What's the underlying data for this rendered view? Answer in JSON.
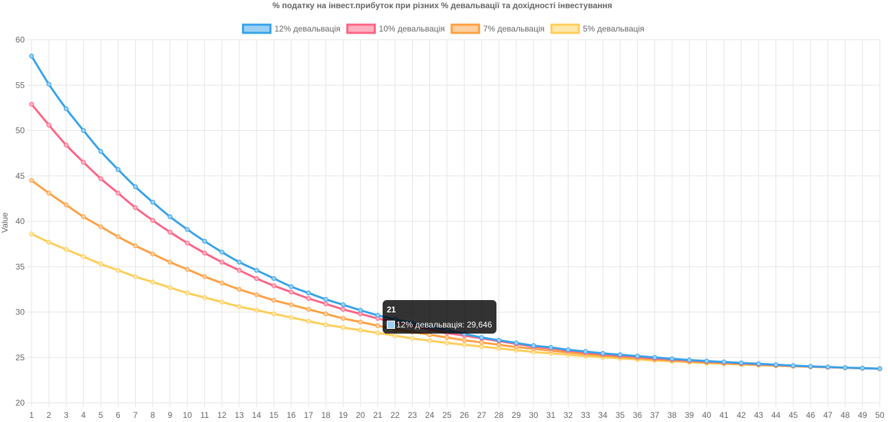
{
  "chart_data": {
    "type": "line",
    "title": "% податку на інвест.прибуток при різних % девальвації та дохідності інвестування",
    "xlabel": "",
    "ylabel": "Value",
    "ylim": [
      20,
      60
    ],
    "y_ticks": [
      "20",
      "25",
      "30",
      "35",
      "40",
      "45",
      "50",
      "55",
      "60"
    ],
    "x": [
      "1",
      "2",
      "3",
      "4",
      "5",
      "6",
      "7",
      "8",
      "9",
      "10",
      "11",
      "12",
      "13",
      "14",
      "15",
      "16",
      "17",
      "18",
      "19",
      "20",
      "21",
      "22",
      "23",
      "24",
      "25",
      "26",
      "27",
      "28",
      "29",
      "30",
      "31",
      "32",
      "33",
      "34",
      "35",
      "36",
      "37",
      "38",
      "39",
      "40",
      "41",
      "42",
      "43",
      "44",
      "45",
      "46",
      "47",
      "48",
      "49",
      "50"
    ],
    "grid": true,
    "legend": "top",
    "series": [
      {
        "name": "12% девальвація",
        "color": "#36a2eb",
        "fill": "#9ad0f5",
        "values": [
          58.2,
          55.1,
          52.4,
          50.0,
          47.7,
          45.7,
          43.8,
          42.1,
          40.5,
          39.1,
          37.8,
          36.6,
          35.5,
          34.6,
          33.7,
          32.8,
          32.1,
          31.4,
          30.8,
          30.2,
          29.646,
          29.2,
          28.8,
          28.4,
          28.0,
          27.6,
          27.2,
          26.9,
          26.6,
          26.3,
          26.1,
          25.85,
          25.65,
          25.45,
          25.3,
          25.15,
          25.0,
          24.85,
          24.72,
          24.6,
          24.5,
          24.4,
          24.3,
          24.2,
          24.1,
          24.02,
          23.95,
          23.88,
          23.82,
          23.76
        ]
      },
      {
        "name": "10% девальвація",
        "color": "#ff6384",
        "fill": "#ffb1c1",
        "values": [
          52.9,
          50.6,
          48.4,
          46.5,
          44.7,
          43.1,
          41.5,
          40.1,
          38.8,
          37.6,
          36.5,
          35.5,
          34.6,
          33.7,
          32.9,
          32.2,
          31.5,
          30.9,
          30.3,
          29.8,
          29.3,
          28.9,
          28.5,
          28.1,
          27.7,
          27.4,
          27.1,
          26.8,
          26.5,
          26.2,
          26.0,
          25.75,
          25.55,
          25.35,
          25.2,
          25.05,
          24.9,
          24.78,
          24.66,
          24.55,
          24.45,
          24.35,
          24.25,
          24.16,
          24.08,
          24.0,
          23.93,
          23.87,
          23.81,
          23.75
        ]
      },
      {
        "name": "7% девальвація",
        "color": "#ff9f40",
        "fill": "#ffcf9f",
        "values": [
          44.5,
          43.1,
          41.8,
          40.5,
          39.4,
          38.3,
          37.3,
          36.4,
          35.5,
          34.7,
          33.9,
          33.2,
          32.5,
          31.9,
          31.3,
          30.8,
          30.3,
          29.8,
          29.3,
          28.9,
          28.5,
          28.1,
          27.8,
          27.5,
          27.2,
          26.9,
          26.65,
          26.4,
          26.15,
          25.95,
          25.75,
          25.55,
          25.38,
          25.22,
          25.07,
          24.93,
          24.8,
          24.68,
          24.57,
          24.47,
          24.38,
          24.29,
          24.2,
          24.12,
          24.05,
          23.98,
          23.92,
          23.86,
          23.81,
          23.76
        ]
      },
      {
        "name": "5% девальвація",
        "color": "#ffcd56",
        "fill": "#ffe6aa",
        "values": [
          38.6,
          37.7,
          36.9,
          36.1,
          35.3,
          34.6,
          33.9,
          33.3,
          32.7,
          32.1,
          31.6,
          31.1,
          30.6,
          30.2,
          29.8,
          29.4,
          29.0,
          28.6,
          28.3,
          28.0,
          27.7,
          27.4,
          27.1,
          26.85,
          26.6,
          26.4,
          26.2,
          26.0,
          25.8,
          25.6,
          25.45,
          25.3,
          25.15,
          25.02,
          24.9,
          24.78,
          24.67,
          24.57,
          24.47,
          24.38,
          24.3,
          24.22,
          24.15,
          24.08,
          24.02,
          23.96,
          23.91,
          23.86,
          23.81,
          23.77
        ]
      }
    ],
    "tooltip": {
      "title": "21",
      "label": "12% девальвація: 29,646",
      "swatch_color": "#9ad0f5"
    }
  }
}
